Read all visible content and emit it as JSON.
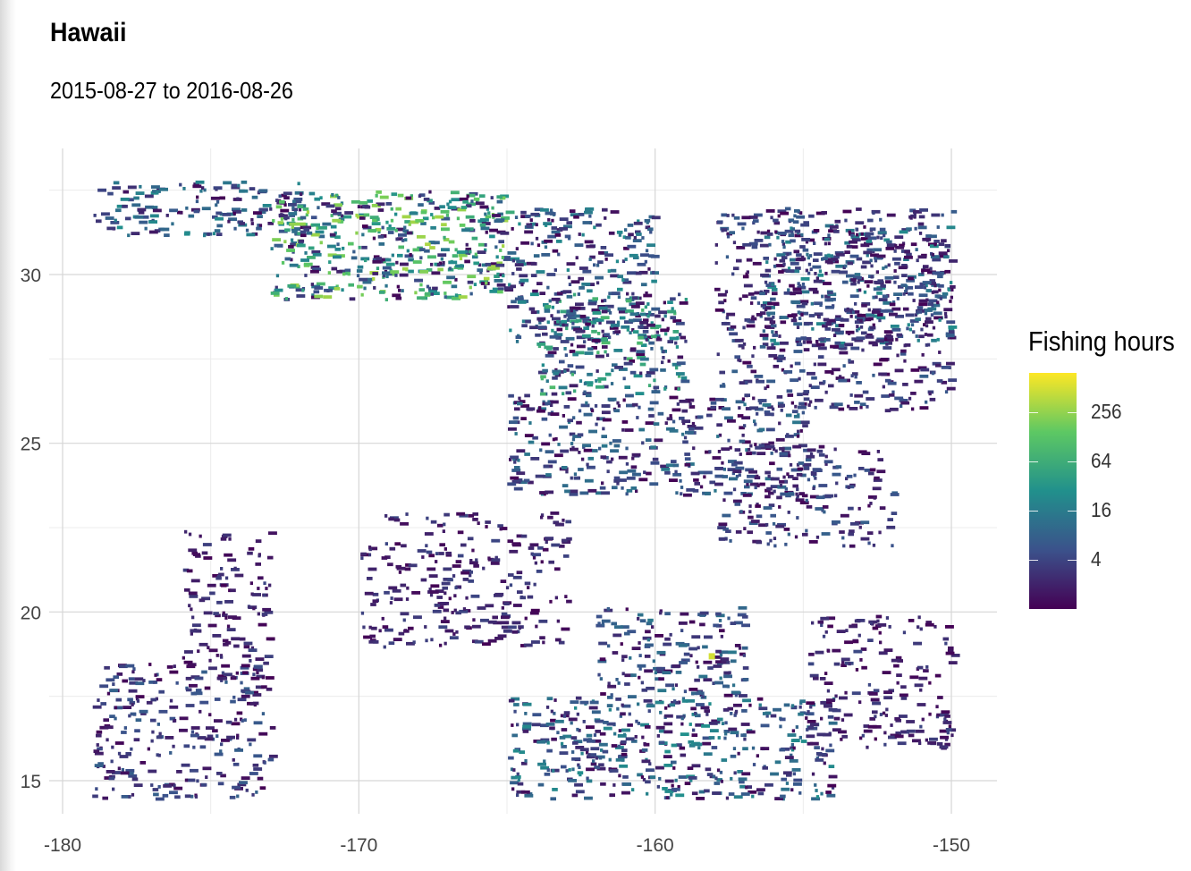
{
  "chart_data": {
    "type": "heatmap",
    "title": "Hawaii",
    "subtitle": "2015-08-27 to 2016-08-26",
    "xlabel": "",
    "ylabel": "",
    "x_ticks": [
      "-180",
      "-170",
      "-160",
      "-150"
    ],
    "y_ticks": [
      "15",
      "20",
      "25",
      "30"
    ],
    "xlim": [
      -180,
      -150
    ],
    "ylim": [
      14.5,
      33
    ],
    "grid": true,
    "legend": {
      "title": "Fishing hours",
      "scale": "log2",
      "ticks": [
        "256",
        "64",
        "16",
        "4"
      ],
      "tick_values": [
        256,
        64,
        16,
        4
      ],
      "range": [
        1,
        768
      ],
      "position": "right",
      "colors": [
        "#440154",
        "#3B528B",
        "#21908C",
        "#5DC863",
        "#FDE725"
      ]
    },
    "regions": [
      {
        "lon": [
          -179,
          -172
        ],
        "lat": [
          31.2,
          32.8
        ],
        "level": 4
      },
      {
        "lon": [
          -173,
          -165
        ],
        "lat": [
          29.3,
          32.5
        ],
        "level": 8
      },
      {
        "lon": [
          -165,
          -160
        ],
        "lat": [
          28,
          32
        ],
        "level": 4
      },
      {
        "lon": [
          -164,
          -159
        ],
        "lat": [
          26.5,
          29.5
        ],
        "level": 6
      },
      {
        "lon": [
          -156.5,
          -150
        ],
        "lat": [
          28,
          31.5
        ],
        "level": 4
      },
      {
        "lon": [
          -158,
          -150
        ],
        "lat": [
          26,
          32
        ],
        "level": 2
      },
      {
        "lon": [
          -165,
          -155
        ],
        "lat": [
          23.5,
          26.5
        ],
        "level": 3
      },
      {
        "lon": [
          -158,
          -152
        ],
        "lat": [
          22,
          25
        ],
        "level": 2
      },
      {
        "lon": [
          -165,
          -154
        ],
        "lat": [
          14.5,
          17.5
        ],
        "level": 4
      },
      {
        "lon": [
          -162,
          -157
        ],
        "lat": [
          17.5,
          20.2
        ],
        "level": 3
      },
      {
        "lon": [
          -179,
          -173
        ],
        "lat": [
          14.5,
          18.5
        ],
        "level": 2
      },
      {
        "lon": [
          -176,
          -173
        ],
        "lat": [
          18,
          22.5
        ],
        "level": 1
      },
      {
        "lon": [
          -170,
          -163
        ],
        "lat": [
          19,
          23
        ],
        "level": 1
      },
      {
        "lon": [
          -155,
          -150
        ],
        "lat": [
          16,
          20
        ],
        "level": 1
      }
    ],
    "hotspot": {
      "lon": -158.1,
      "lat": 18.7,
      "value": 256
    }
  }
}
